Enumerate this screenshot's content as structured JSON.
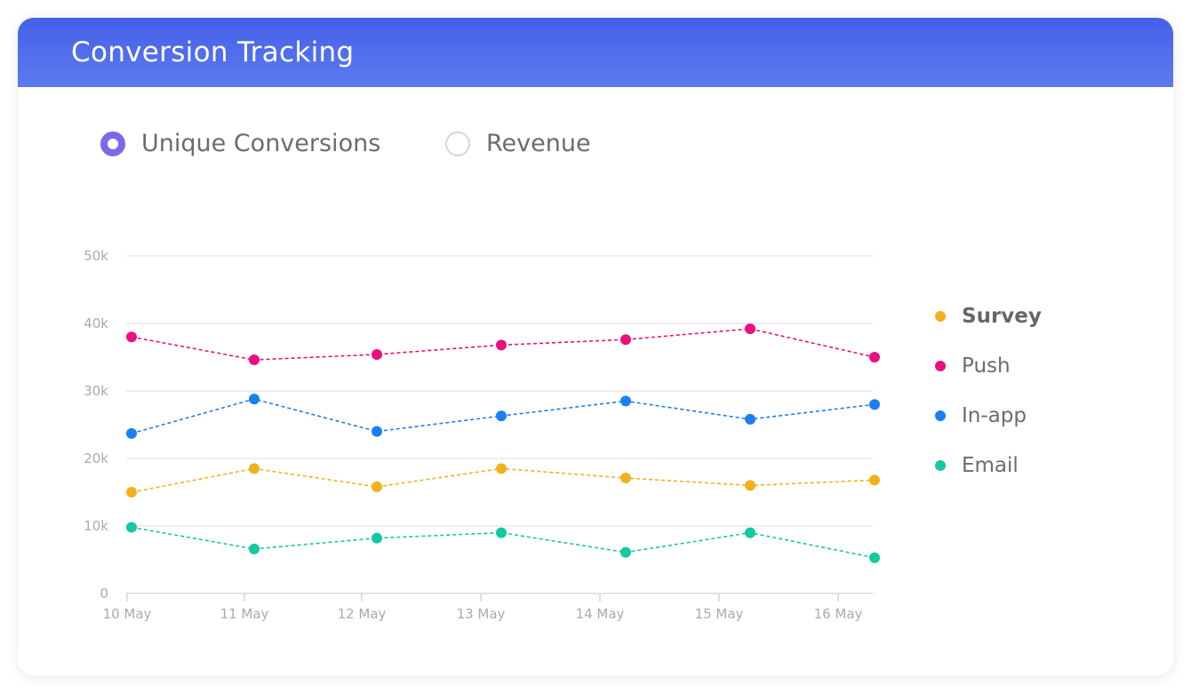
{
  "card": {
    "title": "Conversion Tracking"
  },
  "toggles": [
    {
      "label": "Unique Conversions",
      "checked": true
    },
    {
      "label": "Revenue",
      "checked": false
    }
  ],
  "colors": {
    "header": "#4a66ea",
    "radio_selected": "#7b6ae8",
    "Survey": "#f0b21b",
    "Push": "#ec0f7d",
    "In-app": "#1a7ff0",
    "Email": "#13c9a0"
  },
  "chart_data": {
    "type": "line",
    "categories": [
      "10 May",
      "11 May",
      "12 May",
      "13 May",
      "14 May",
      "15 May",
      "16 May"
    ],
    "y_ticks": [
      "0",
      "10k",
      "20k",
      "30k",
      "40k",
      "50k"
    ],
    "ylim": [
      0,
      50000
    ],
    "grid": true,
    "legend_position": "right",
    "line_style": "dashed",
    "series": [
      {
        "name": "Survey",
        "values": [
          15000,
          18500,
          15800,
          18500,
          17100,
          16000,
          16800
        ]
      },
      {
        "name": "Push",
        "values": [
          38000,
          34600,
          35400,
          36800,
          37600,
          39200,
          35000
        ]
      },
      {
        "name": "In-app",
        "values": [
          23700,
          28800,
          24000,
          26300,
          28500,
          25800,
          28000
        ]
      },
      {
        "name": "Email",
        "values": [
          9800,
          6600,
          8200,
          9000,
          6100,
          9000,
          5300
        ]
      }
    ]
  }
}
